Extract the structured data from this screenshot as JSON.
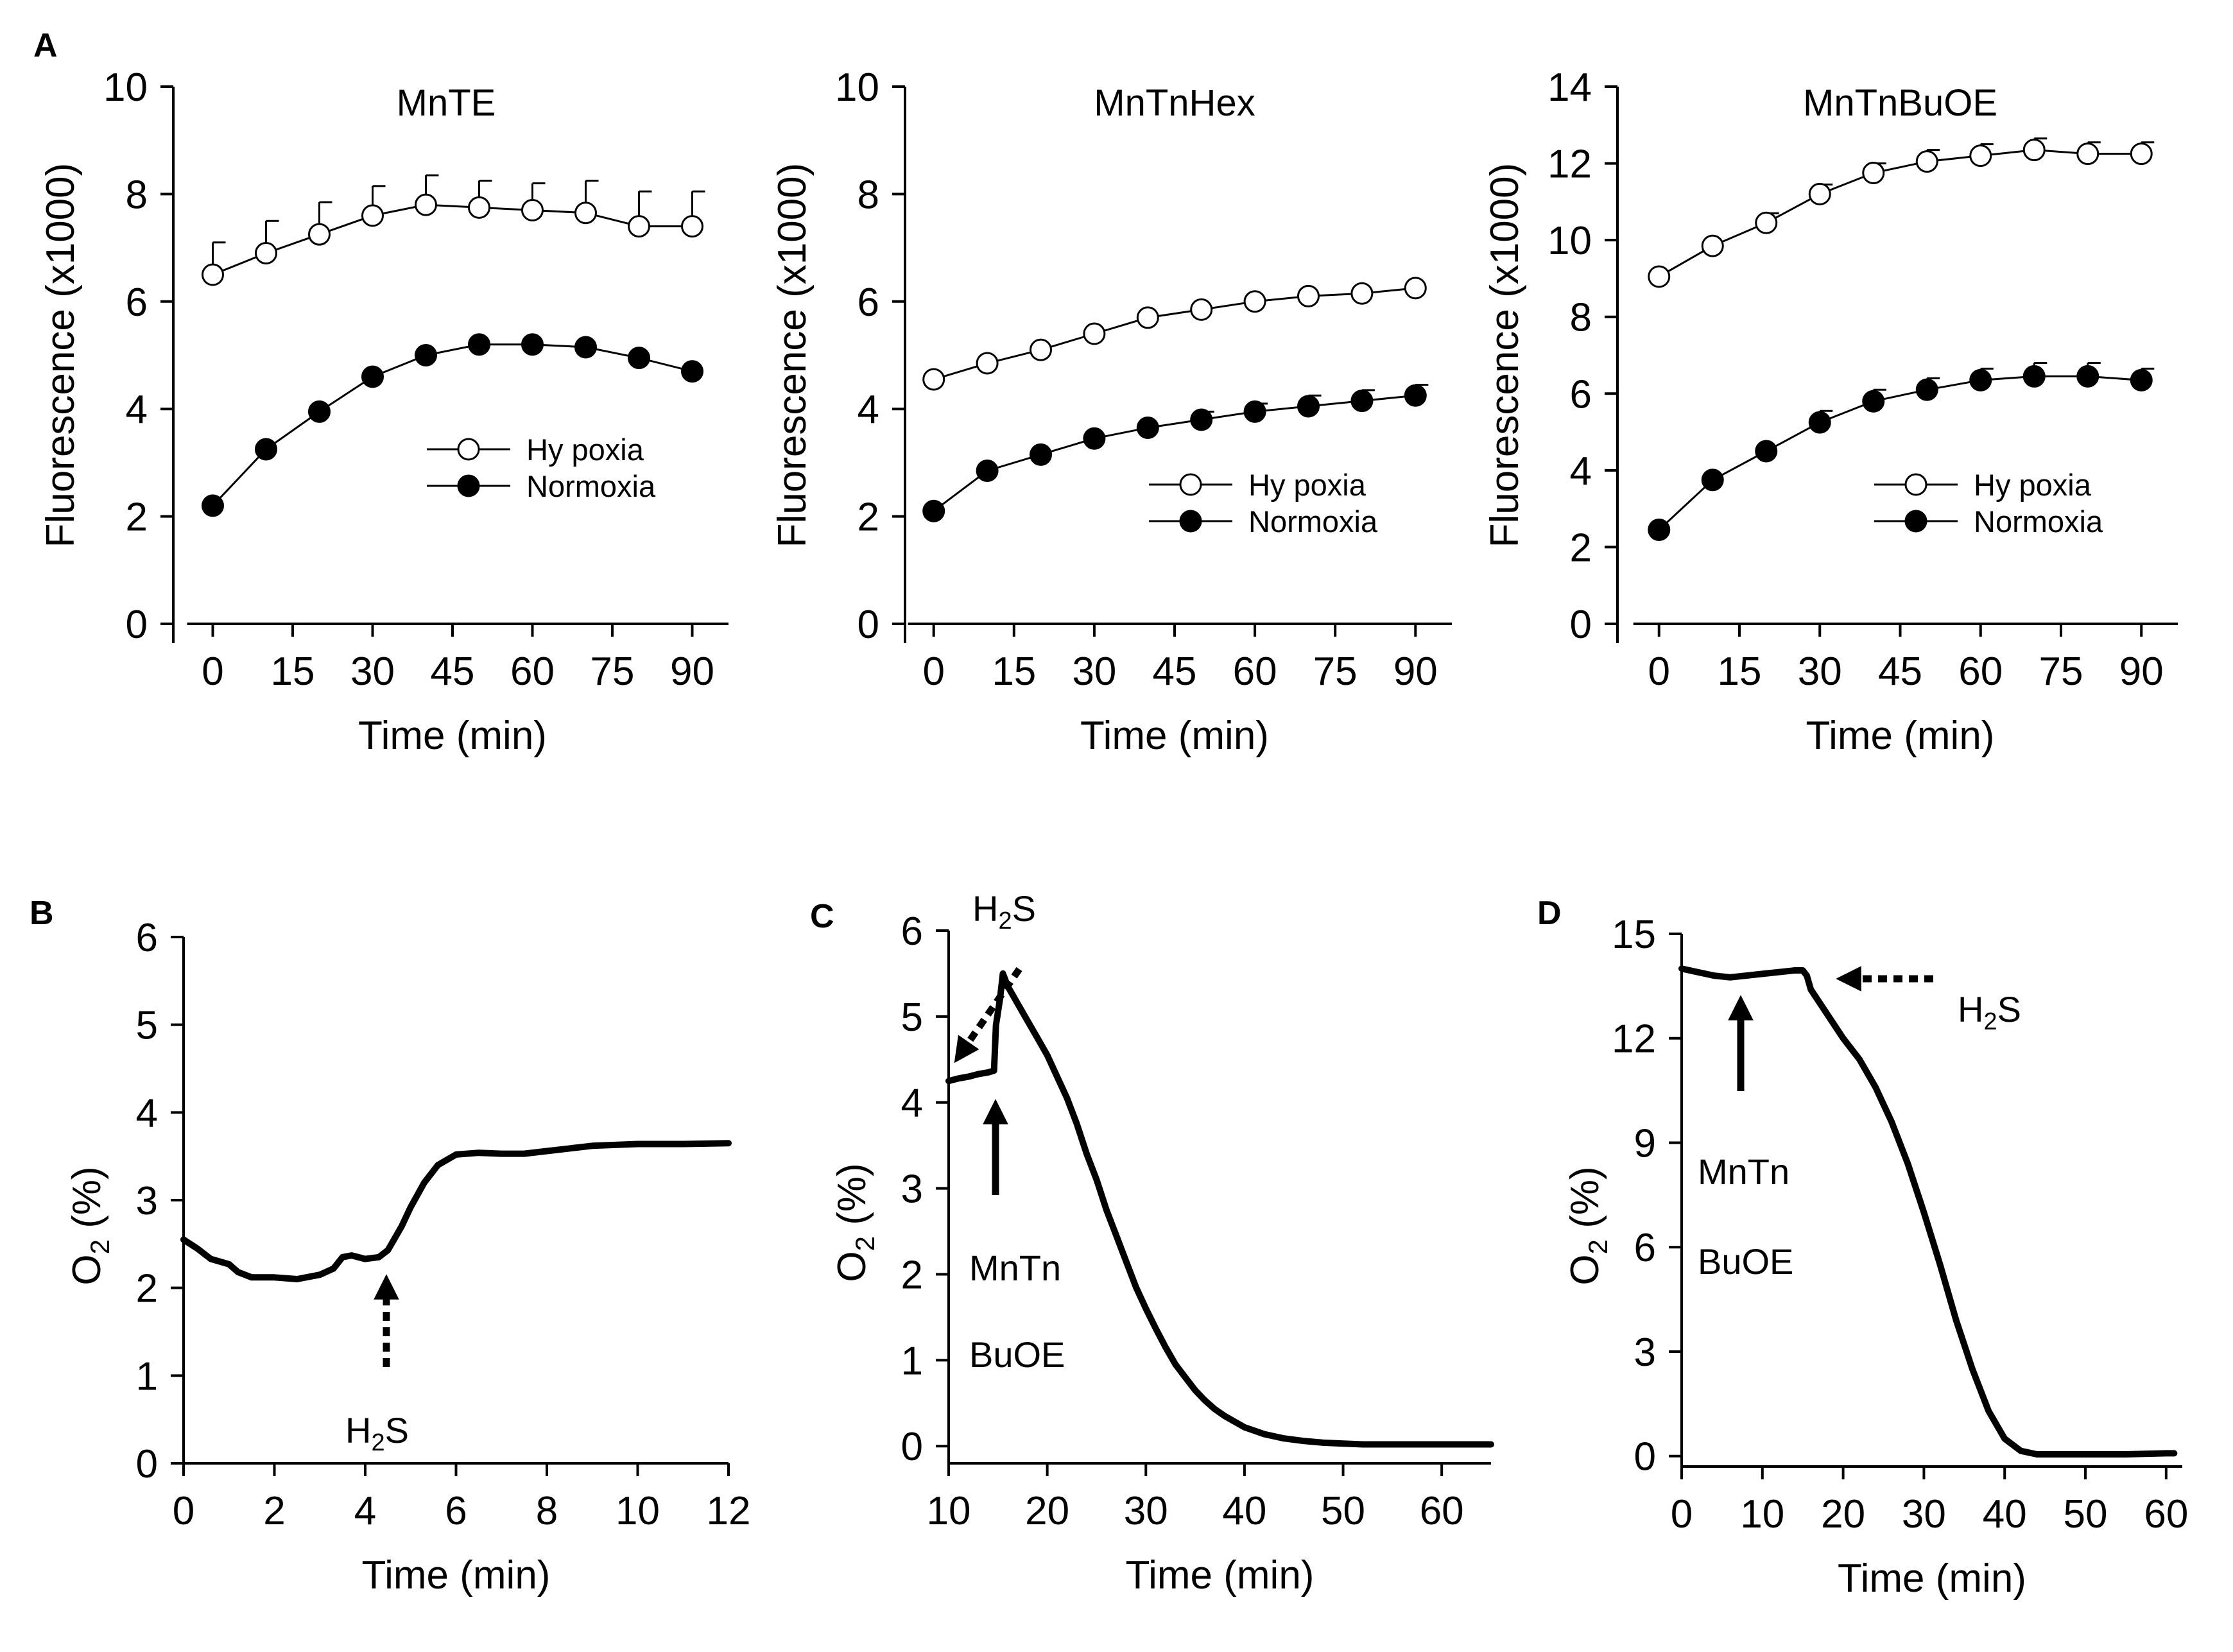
{
  "panel_labels": {
    "A": "A",
    "B": "B",
    "C": "C",
    "D": "D"
  },
  "chart_data": [
    {
      "id": "A1",
      "type": "line",
      "title": "MnTE",
      "xlabel": "Time (min)",
      "ylabel": "Fluorescence (x1000)",
      "x": [
        0,
        10,
        20,
        30,
        40,
        50,
        60,
        70,
        80,
        90
      ],
      "xlim": [
        -5,
        95
      ],
      "ylim": [
        0,
        10
      ],
      "xticks": [
        0,
        15,
        30,
        45,
        60,
        75,
        90
      ],
      "yticks": [
        0,
        2,
        4,
        6,
        8,
        10
      ],
      "legend_position": "middle-right",
      "series": [
        {
          "name": "Hy poxia",
          "marker": "open-circle",
          "values": [
            6.5,
            6.9,
            7.25,
            7.6,
            7.8,
            7.75,
            7.7,
            7.65,
            7.4,
            7.4
          ],
          "error": [
            0.6,
            0.6,
            0.6,
            0.55,
            0.55,
            0.5,
            0.5,
            0.6,
            0.65,
            0.65
          ]
        },
        {
          "name": "Normoxia",
          "marker": "filled-circle",
          "values": [
            2.2,
            3.25,
            3.95,
            4.6,
            5.0,
            5.2,
            5.2,
            5.15,
            4.95,
            4.7
          ],
          "error": [
            0,
            0,
            0,
            0,
            0,
            0,
            0,
            0,
            0,
            0
          ]
        }
      ]
    },
    {
      "id": "A2",
      "type": "line",
      "title": "MnTnHex",
      "xlabel": "Time (min)",
      "ylabel": "Fluorescence (x1000)",
      "x": [
        0,
        10,
        20,
        30,
        40,
        50,
        60,
        70,
        80,
        90
      ],
      "xlim": [
        -5,
        95
      ],
      "ylim": [
        0,
        10
      ],
      "xticks": [
        0,
        15,
        30,
        45,
        60,
        75,
        90
      ],
      "yticks": [
        0,
        2,
        4,
        6,
        8,
        10
      ],
      "legend_position": "lower-right",
      "series": [
        {
          "name": "Hy poxia",
          "marker": "open-circle",
          "values": [
            4.55,
            4.85,
            5.1,
            5.4,
            5.7,
            5.85,
            6.0,
            6.1,
            6.15,
            6.25
          ],
          "error": [
            0,
            0,
            0,
            0,
            0,
            0,
            0,
            0,
            0,
            0
          ]
        },
        {
          "name": "Normoxia",
          "marker": "filled-circle",
          "values": [
            2.1,
            2.85,
            3.15,
            3.45,
            3.65,
            3.8,
            3.95,
            4.05,
            4.15,
            4.25
          ],
          "error": [
            0,
            0,
            0,
            0,
            0,
            0.15,
            0.15,
            0.2,
            0.2,
            0.2
          ]
        }
      ]
    },
    {
      "id": "A3",
      "type": "line",
      "title": "MnTnBuOE",
      "xlabel": "Time (min)",
      "ylabel": "Fluorescence (x1000)",
      "x": [
        0,
        10,
        20,
        30,
        40,
        50,
        60,
        70,
        80,
        90
      ],
      "xlim": [
        -5,
        95
      ],
      "ylim": [
        0,
        14
      ],
      "xticks": [
        0,
        15,
        30,
        45,
        60,
        75,
        90
      ],
      "yticks": [
        0,
        2,
        4,
        6,
        8,
        10,
        12,
        14
      ],
      "legend_position": "lower-right",
      "series": [
        {
          "name": "Hy poxia",
          "marker": "open-circle",
          "values": [
            9.05,
            9.85,
            10.45,
            11.2,
            11.75,
            12.05,
            12.2,
            12.35,
            12.25,
            12.25
          ],
          "error": [
            0,
            0,
            0.25,
            0.25,
            0.25,
            0.3,
            0.3,
            0.3,
            0.3,
            0.3
          ]
        },
        {
          "name": "Normoxia",
          "marker": "filled-circle",
          "values": [
            2.45,
            3.75,
            4.5,
            5.25,
            5.8,
            6.1,
            6.35,
            6.45,
            6.45,
            6.35
          ],
          "error": [
            0,
            0,
            0,
            0.3,
            0.3,
            0.3,
            0.3,
            0.35,
            0.35,
            0.3
          ]
        }
      ]
    },
    {
      "id": "B",
      "type": "line",
      "xlabel": "Time (min)",
      "ylabel": "O2 (%)",
      "xlim": [
        0,
        12
      ],
      "ylim": [
        0,
        6
      ],
      "xticks": [
        0,
        2,
        4,
        6,
        8,
        10,
        12
      ],
      "yticks": [
        0,
        1,
        2,
        3,
        4,
        5,
        6
      ],
      "series": [
        {
          "name": "O2",
          "x": [
            0,
            0.3,
            0.6,
            1.0,
            1.2,
            1.5,
            2.0,
            2.5,
            3.0,
            3.3,
            3.5,
            3.7,
            4.0,
            4.3,
            4.5,
            4.8,
            5.0,
            5.3,
            5.6,
            6.0,
            6.5,
            7.0,
            7.5,
            8.0,
            9.0,
            10.0,
            11.0,
            12.0
          ],
          "values": [
            2.55,
            2.45,
            2.33,
            2.27,
            2.18,
            2.12,
            2.12,
            2.1,
            2.15,
            2.22,
            2.35,
            2.37,
            2.33,
            2.35,
            2.43,
            2.7,
            2.92,
            3.2,
            3.4,
            3.52,
            3.54,
            3.53,
            3.53,
            3.56,
            3.62,
            3.64,
            3.64,
            3.65
          ]
        }
      ],
      "annotations": [
        {
          "text": "H",
          "sub": "2",
          "tail": "S",
          "arrow": "dashed-up",
          "at_x": 4.5
        }
      ]
    },
    {
      "id": "C",
      "type": "line",
      "xlabel": "Time (min)",
      "ylabel": "O2 (%)",
      "xlim": [
        10,
        65
      ],
      "ylim": [
        -0.2,
        6
      ],
      "xticks": [
        10,
        20,
        30,
        40,
        50,
        60
      ],
      "yticks": [
        0,
        1,
        2,
        3,
        4,
        5,
        6
      ],
      "series": [
        {
          "name": "O2",
          "x": [
            10,
            11,
            12,
            13,
            14,
            14.6,
            14.8,
            15.0,
            15.2,
            15.5,
            16,
            17,
            18,
            19,
            20,
            21,
            22,
            23,
            24,
            25,
            26,
            27,
            28,
            29,
            30,
            31,
            32,
            33,
            34,
            35,
            36,
            37,
            38,
            40,
            42,
            44,
            46,
            48,
            50,
            52,
            55,
            58,
            62,
            65
          ],
          "values": [
            4.25,
            4.28,
            4.3,
            4.33,
            4.35,
            4.37,
            4.9,
            5.05,
            5.2,
            5.5,
            5.35,
            5.15,
            4.95,
            4.75,
            4.55,
            4.3,
            4.05,
            3.75,
            3.4,
            3.1,
            2.75,
            2.45,
            2.15,
            1.85,
            1.6,
            1.37,
            1.15,
            0.95,
            0.8,
            0.65,
            0.53,
            0.43,
            0.35,
            0.22,
            0.14,
            0.09,
            0.06,
            0.04,
            0.03,
            0.02,
            0.02,
            0.02,
            0.02,
            0.02
          ]
        }
      ],
      "annotations": [
        {
          "text": "H",
          "sub": "2",
          "tail": "S",
          "arrow": "dashed-down-left"
        },
        {
          "arrow": "solid-up",
          "at_x": 14.5
        },
        {
          "text": "MnTn"
        },
        {
          "text": "BuOE"
        }
      ]
    },
    {
      "id": "D",
      "type": "line",
      "xlabel": "Time (min)",
      "ylabel": "O2 (%)",
      "xlim": [
        0,
        62
      ],
      "ylim": [
        -0.3,
        15
      ],
      "xticks": [
        0,
        10,
        20,
        30,
        40,
        50,
        60
      ],
      "yticks": [
        0,
        3,
        6,
        9,
        12,
        15
      ],
      "series": [
        {
          "name": "O2",
          "x": [
            0,
            2,
            4,
            6,
            8,
            10,
            12,
            14,
            15,
            15.5,
            16,
            18,
            20,
            22,
            24,
            26,
            28,
            30,
            32,
            34,
            36,
            38,
            40,
            42,
            44,
            46,
            48,
            50,
            55,
            60,
            61
          ],
          "values": [
            14.0,
            13.9,
            13.8,
            13.75,
            13.8,
            13.85,
            13.9,
            13.95,
            13.95,
            13.8,
            13.4,
            12.7,
            12.0,
            11.4,
            10.6,
            9.6,
            8.4,
            7.0,
            5.5,
            3.9,
            2.5,
            1.3,
            0.5,
            0.15,
            0.05,
            0.05,
            0.05,
            0.05,
            0.05,
            0.08,
            0.08
          ]
        }
      ],
      "annotations": [
        {
          "arrow": "solid-up",
          "at_x": 8
        },
        {
          "text": "H",
          "sub": "2",
          "tail": "S",
          "arrow": "dashed-left"
        },
        {
          "text": "MnTn"
        },
        {
          "text": "BuOE"
        }
      ]
    }
  ]
}
